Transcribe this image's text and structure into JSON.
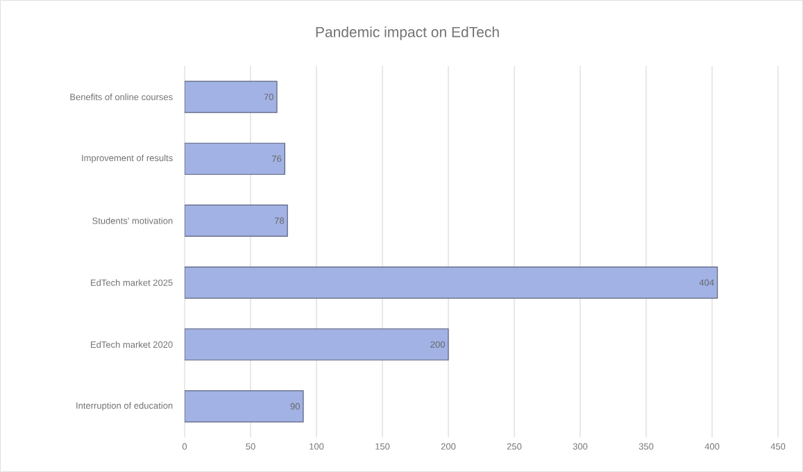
{
  "chart_data": {
    "type": "bar",
    "title": "Pandemic impact on EdTech",
    "orientation": "horizontal",
    "categories": [
      "Benefits of online courses",
      "Improvement of results",
      "Students' motivation",
      "EdTech market 2025",
      "EdTech market 2020",
      "Interruption of education"
    ],
    "values": [
      70,
      76,
      78,
      404,
      200,
      90
    ],
    "color": "#a2b2e4",
    "data_labels": true,
    "grid": "x",
    "xlim": [
      0,
      450
    ],
    "xticks": [
      0,
      50,
      100,
      150,
      200,
      250,
      300,
      350,
      400,
      450
    ]
  }
}
